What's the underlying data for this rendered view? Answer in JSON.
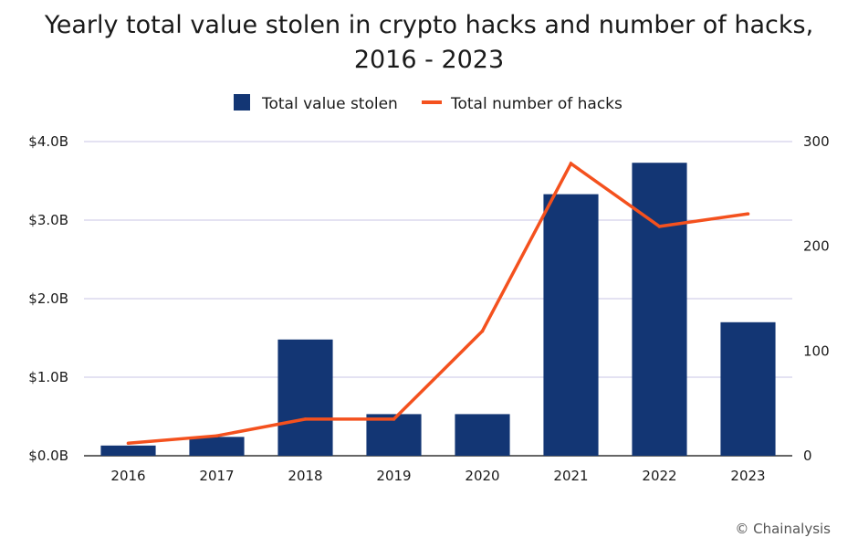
{
  "chart_data": {
    "type": "bar",
    "title_line1": "Yearly total value stolen in crypto hacks and number of hacks,",
    "title_line2": "2016 - 2023",
    "categories": [
      "2016",
      "2017",
      "2018",
      "2019",
      "2020",
      "2021",
      "2022",
      "2023"
    ],
    "series": [
      {
        "name": "Total value stolen",
        "kind": "bar",
        "axis": "left",
        "unit": "B USD",
        "values": [
          0.13,
          0.24,
          1.48,
          0.53,
          0.53,
          3.33,
          3.73,
          1.7
        ]
      },
      {
        "name": "Total number of hacks",
        "kind": "line",
        "axis": "right",
        "values": [
          12,
          19,
          35,
          35,
          119,
          279,
          219,
          231
        ]
      }
    ],
    "ylim_left": [
      0,
      4
    ],
    "yticks_left": [
      0,
      1,
      2,
      3,
      4
    ],
    "ytick_labels_left": [
      "$0.0B",
      "$1.0B",
      "$2.0B",
      "$3.0B",
      "$4.0B"
    ],
    "ylim_right": [
      0,
      300
    ],
    "yticks_right": [
      0,
      100,
      200,
      300
    ],
    "ytick_labels_right": [
      "0",
      "100",
      "200",
      "300"
    ],
    "grid": true,
    "legend_position": "top-center",
    "colors": {
      "bar": "#133674",
      "line": "#f4511e",
      "grid": "#c9c6e6",
      "axis": "#333333"
    }
  },
  "source": "© Chainalysis"
}
